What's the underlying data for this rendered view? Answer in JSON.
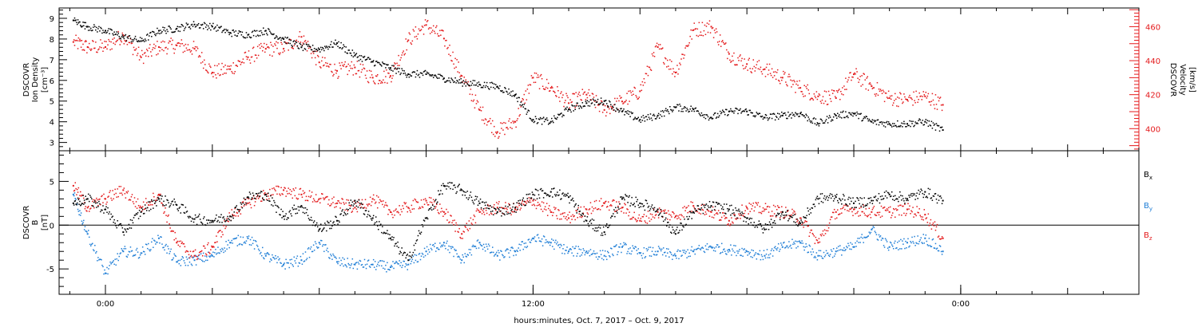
{
  "chart_data": [
    {
      "type": "scatter",
      "panel": "top",
      "ylabel_left": [
        "DSCOVR",
        "Ion Density",
        "[cm⁻³]"
      ],
      "ylabel_right": [
        "DSCOVR",
        "Velocity",
        "[km/s]"
      ],
      "ylim_left": [
        2.6,
        9.5
      ],
      "yticks_left": [
        3,
        4,
        5,
        6,
        7,
        8,
        9
      ],
      "ylim_right": [
        387,
        471
      ],
      "yticks_right": [
        400,
        420,
        440,
        460
      ],
      "grid": false,
      "series": [
        {
          "color": "#000000",
          "axis": "left",
          "x": [
            -0.9,
            -0.5,
            0,
            0.5,
            1,
            1.5,
            2,
            2.5,
            3,
            3.5,
            4,
            4.5,
            5,
            5.5,
            6,
            6.5,
            7,
            7.5,
            8,
            8.5,
            9,
            9.5,
            10,
            10.5,
            11,
            11.5,
            12,
            12.5,
            13,
            13.5,
            14,
            14.5,
            15,
            15.5,
            16,
            16.5,
            17,
            17.5,
            18,
            18.5,
            19,
            19.5,
            20,
            20.5,
            21,
            21.5,
            22,
            22.5,
            23,
            23.5
          ],
          "y": [
            8.9,
            8.6,
            8.4,
            8.1,
            7.9,
            8.4,
            8.5,
            8.7,
            8.6,
            8.3,
            8.2,
            8.4,
            8.0,
            7.6,
            7.5,
            7.8,
            7.2,
            6.9,
            6.6,
            6.3,
            6.3,
            6.1,
            5.9,
            5.8,
            5.7,
            5.3,
            4.1,
            4.0,
            4.6,
            4.9,
            5.0,
            4.5,
            4.1,
            4.3,
            4.7,
            4.6,
            4.2,
            4.5,
            4.5,
            4.2,
            4.3,
            4.4,
            3.9,
            4.3,
            4.4,
            4.0,
            3.9,
            3.9,
            4.0,
            3.6
          ]
        },
        {
          "color": "#e41a1c",
          "axis": "right",
          "x": [
            -0.9,
            -0.5,
            0,
            0.5,
            1,
            1.5,
            2,
            2.5,
            3,
            3.5,
            4,
            4.5,
            5,
            5.5,
            6,
            6.5,
            7,
            7.5,
            8,
            8.5,
            9,
            9.5,
            10,
            10.5,
            11,
            11.5,
            12,
            12.5,
            13,
            13.5,
            14,
            14.5,
            15,
            15.5,
            16,
            16.5,
            17,
            17.5,
            18,
            18.5,
            19,
            19.5,
            20,
            20.5,
            21,
            21.5,
            22,
            22.5,
            23,
            23.5
          ],
          "y": [
            451,
            448,
            448,
            455,
            442,
            448,
            449,
            447,
            433,
            435,
            442,
            447,
            447,
            454,
            439,
            434,
            436,
            430,
            431,
            452,
            461,
            453,
            431,
            411,
            398,
            404,
            430,
            424,
            415,
            420,
            411,
            416,
            422,
            448,
            433,
            458,
            460,
            444,
            438,
            435,
            430,
            424,
            419,
            418,
            432,
            425,
            418,
            417,
            419,
            414
          ]
        }
      ]
    },
    {
      "type": "scatter",
      "panel": "bottom",
      "ylabel_left": [
        "DSCOVR",
        "B",
        "[nT]"
      ],
      "ylim": [
        -7.9,
        8.5
      ],
      "yticks": [
        -5,
        0,
        5
      ],
      "zero_line": true,
      "grid": false,
      "legend_position": "right",
      "series": [
        {
          "name": "Bx",
          "name_main": "B",
          "name_sub": "x",
          "color": "#000000",
          "x": [
            -0.9,
            -0.5,
            0,
            0.5,
            1,
            1.5,
            2,
            2.5,
            3,
            3.5,
            4,
            4.5,
            5,
            5.5,
            6,
            6.5,
            7,
            7.5,
            8,
            8.5,
            9,
            9.5,
            10,
            10.5,
            11,
            11.5,
            12,
            12.5,
            13,
            13.5,
            14,
            14.5,
            15,
            15.5,
            16,
            16.5,
            17,
            17.5,
            18,
            18.5,
            19,
            19.5,
            20,
            20.5,
            21,
            21.5,
            22,
            22.5,
            23,
            23.5
          ],
          "y": [
            2.5,
            3.0,
            1.8,
            -0.8,
            1.5,
            3.0,
            2.3,
            0.7,
            0.5,
            1.0,
            3.2,
            3.5,
            1.0,
            2.2,
            -0.5,
            0.5,
            2.8,
            0.8,
            -1.5,
            -4.0,
            0.8,
            4.5,
            4.0,
            2.5,
            1.5,
            2.0,
            3.5,
            3.8,
            3.2,
            0.5,
            -0.8,
            3.0,
            2.5,
            1.8,
            -1.0,
            1.5,
            2.2,
            1.8,
            0.8,
            -0.5,
            1.5,
            0.2,
            3.0,
            3.2,
            2.5,
            2.8,
            3.5,
            3.0,
            3.8,
            2.8
          ]
        },
        {
          "name": "By",
          "name_main": "B",
          "name_sub": "y",
          "color": "#1f7ed6",
          "x": [
            -0.9,
            -0.5,
            0,
            0.5,
            1,
            1.5,
            2,
            2.5,
            3,
            3.5,
            4,
            4.5,
            5,
            5.5,
            6,
            6.5,
            7,
            7.5,
            8,
            8.5,
            9,
            9.5,
            10,
            10.5,
            11,
            11.5,
            12,
            12.5,
            13,
            13.5,
            14,
            14.5,
            15,
            15.5,
            16,
            16.5,
            17,
            17.5,
            18,
            18.5,
            19,
            19.5,
            20,
            20.5,
            21,
            21.5,
            22,
            22.5,
            23,
            23.5
          ],
          "y": [
            3.5,
            -1.0,
            -5.5,
            -3.0,
            -3.2,
            -1.5,
            -4.2,
            -4.0,
            -3.5,
            -2.0,
            -1.5,
            -3.5,
            -4.5,
            -4.0,
            -2.0,
            -4.2,
            -4.5,
            -4.5,
            -4.8,
            -4.5,
            -3.0,
            -2.0,
            -4.0,
            -2.0,
            -3.5,
            -3.0,
            -1.5,
            -2.0,
            -3.0,
            -3.0,
            -3.5,
            -2.5,
            -3.2,
            -3.0,
            -3.5,
            -3.0,
            -2.5,
            -2.8,
            -3.0,
            -3.5,
            -2.5,
            -2.0,
            -3.5,
            -3.0,
            -2.5,
            -0.5,
            -2.5,
            -2.0,
            -1.5,
            -3.0
          ]
        },
        {
          "name": "Bz",
          "name_main": "B",
          "name_sub": "z",
          "color": "#e41a1c",
          "x": [
            -0.9,
            -0.5,
            0,
            0.5,
            1,
            1.5,
            2,
            2.5,
            3,
            3.5,
            4,
            4.5,
            5,
            5.5,
            6,
            6.5,
            7,
            7.5,
            8,
            8.5,
            9,
            9.5,
            10,
            10.5,
            11,
            11.5,
            12,
            12.5,
            13,
            13.5,
            14,
            14.5,
            15,
            15.5,
            16,
            16.5,
            17,
            17.5,
            18,
            18.5,
            19,
            19.5,
            20,
            20.5,
            21,
            21.5,
            22,
            22.5,
            23,
            23.5
          ],
          "y": [
            4.5,
            2.0,
            3.0,
            4.0,
            2.0,
            3.5,
            -2.0,
            -3.5,
            -2.5,
            1.0,
            2.5,
            3.5,
            4.0,
            3.5,
            3.0,
            2.5,
            2.0,
            3.0,
            1.5,
            2.0,
            2.8,
            1.5,
            -1.0,
            1.5,
            2.0,
            1.8,
            2.8,
            1.5,
            0.8,
            1.8,
            2.5,
            2.0,
            0.5,
            1.5,
            1.0,
            2.2,
            1.5,
            0.5,
            2.0,
            1.8,
            1.5,
            0.8,
            -2.0,
            1.5,
            1.8,
            1.5,
            1.5,
            1.8,
            1.2,
            -1.5
          ]
        }
      ]
    }
  ],
  "x_axis": {
    "unit": "hours",
    "xlim": [
      -1.3,
      29.0
    ],
    "tick_labels": [
      "0:00",
      "12:00",
      "0:00"
    ],
    "tick_values": [
      0,
      12,
      24
    ],
    "title": "hours:minutes, Oct.  7, 2017 – Oct.  9, 2017"
  }
}
